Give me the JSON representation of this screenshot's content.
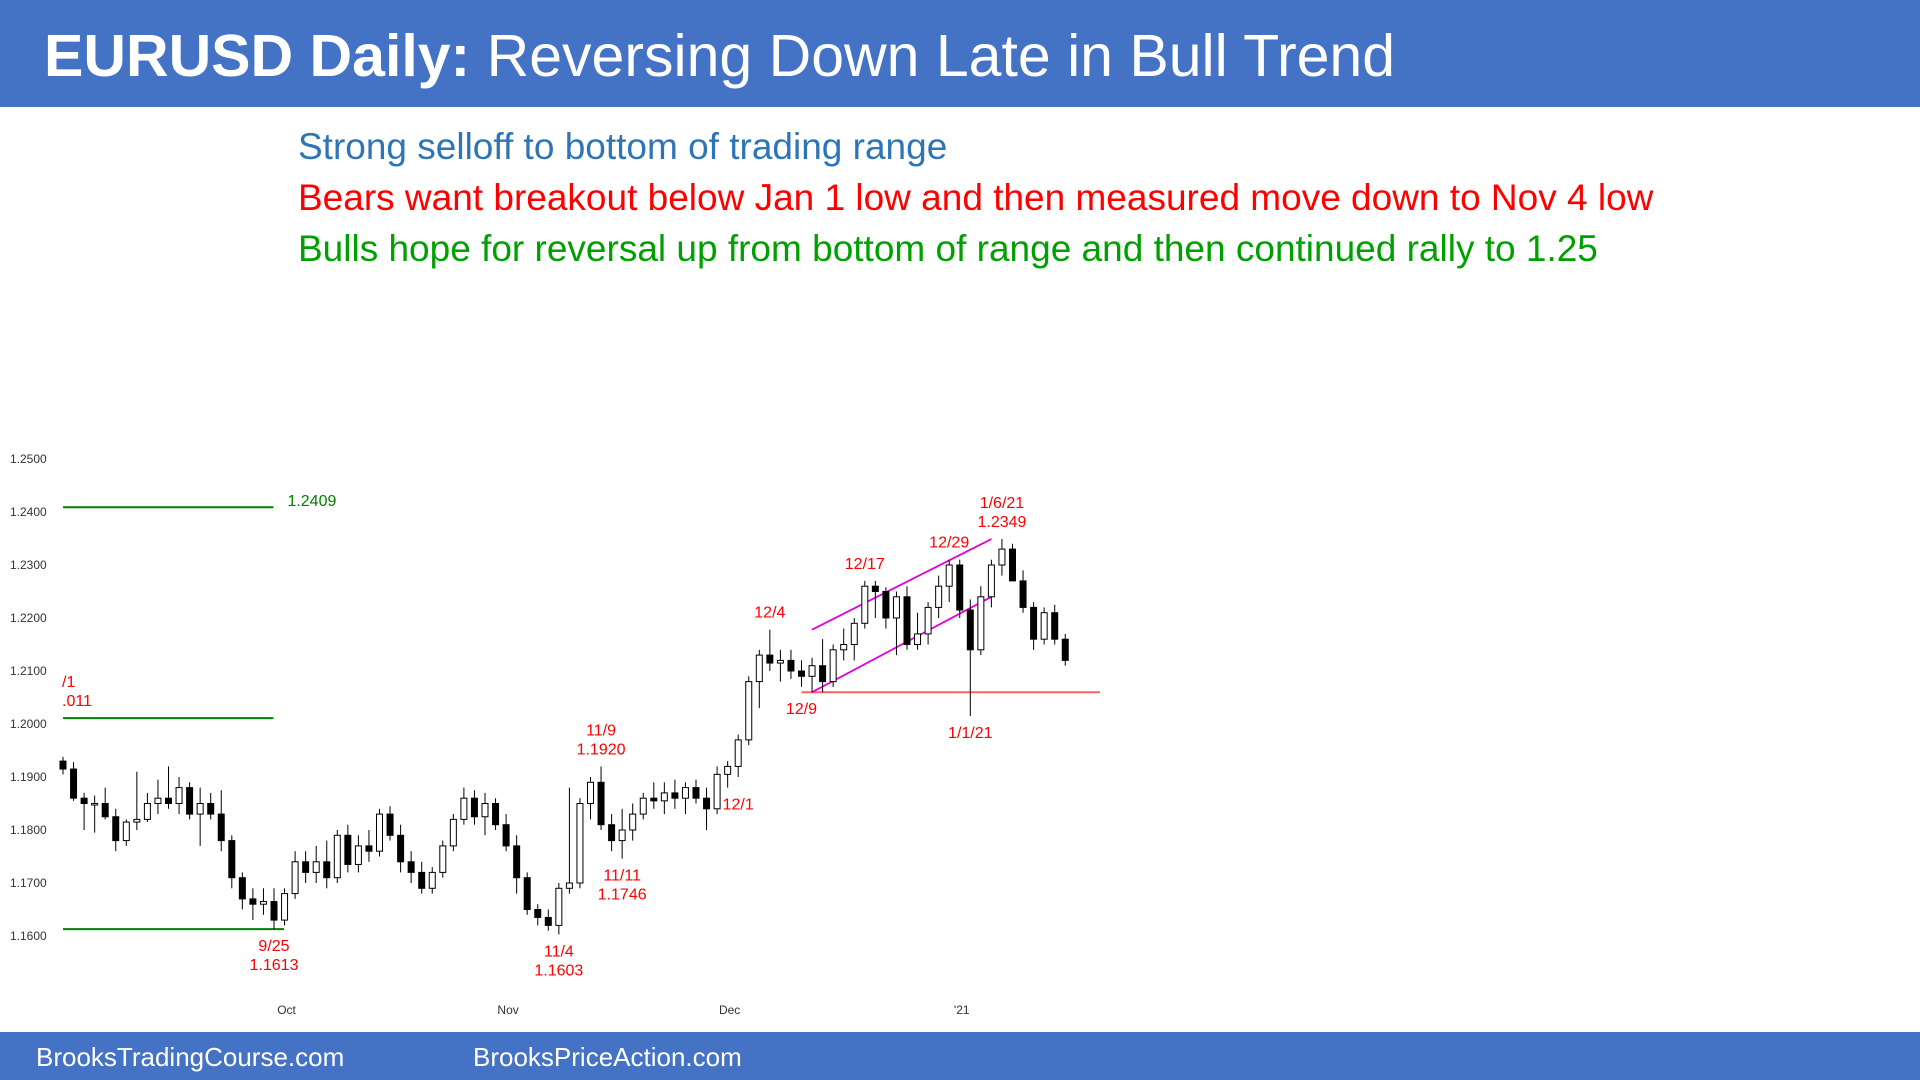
{
  "header": {
    "title_bold": "EURUSD Daily:",
    "title_rest": "Reversing Down Late in Bull Trend",
    "background": "#4472c4"
  },
  "notes": [
    {
      "text": "Strong selloff to bottom of trading range",
      "color": "#2e75b6"
    },
    {
      "text": "Bears want breakout below Jan 1 low and then measured move down to Nov 4 low",
      "color": "#ff0000"
    },
    {
      "text": "Bulls hope for reversal up from bottom of range and then continued rally to 1.25",
      "color": "#00a000"
    }
  ],
  "footer": {
    "left": "BrooksTradingCourse.com",
    "right": "BrooksPriceAction.com"
  },
  "chart_data": {
    "type": "candlestick",
    "title": "",
    "ylim": [
      1.155,
      1.254
    ],
    "y_ticks": [
      "1.2500",
      "1.2400",
      "1.2300",
      "1.2200",
      "1.2100",
      "1.2000",
      "1.1900",
      "1.1800",
      "1.1700",
      "1.1600"
    ],
    "x_tick_labels": [
      {
        "label": "Oct",
        "bar": 21
      },
      {
        "label": "Nov",
        "bar": 42
      },
      {
        "label": "Dec",
        "bar": 63
      },
      {
        "label": "'21",
        "bar": 85
      }
    ],
    "candles": [
      [
        1.193,
        1.1938,
        1.1905,
        1.1915
      ],
      [
        1.1915,
        1.1928,
        1.1855,
        1.186
      ],
      [
        1.186,
        1.187,
        1.18,
        1.185
      ],
      [
        1.185,
        1.1865,
        1.1795,
        1.185
      ],
      [
        1.185,
        1.188,
        1.182,
        1.1825
      ],
      [
        1.1825,
        1.184,
        1.176,
        1.178
      ],
      [
        1.178,
        1.182,
        1.177,
        1.1815
      ],
      [
        1.1815,
        1.191,
        1.18,
        1.182
      ],
      [
        1.182,
        1.187,
        1.1815,
        1.185
      ],
      [
        1.185,
        1.1895,
        1.183,
        1.186
      ],
      [
        1.186,
        1.192,
        1.184,
        1.185
      ],
      [
        1.185,
        1.19,
        1.183,
        1.188
      ],
      [
        1.188,
        1.189,
        1.182,
        1.183
      ],
      [
        1.183,
        1.188,
        1.177,
        1.185
      ],
      [
        1.185,
        1.187,
        1.182,
        1.183
      ],
      [
        1.183,
        1.1875,
        1.176,
        1.178
      ],
      [
        1.178,
        1.179,
        1.169,
        1.171
      ],
      [
        1.171,
        1.172,
        1.165,
        1.167
      ],
      [
        1.167,
        1.169,
        1.163,
        1.166
      ],
      [
        1.166,
        1.169,
        1.164,
        1.1665
      ],
      [
        1.1665,
        1.169,
        1.1613,
        1.163
      ],
      [
        1.163,
        1.169,
        1.162,
        1.168
      ],
      [
        1.168,
        1.176,
        1.167,
        1.174
      ],
      [
        1.174,
        1.176,
        1.17,
        1.172
      ],
      [
        1.172,
        1.177,
        1.17,
        1.174
      ],
      [
        1.174,
        1.178,
        1.169,
        1.171
      ],
      [
        1.171,
        1.18,
        1.17,
        1.179
      ],
      [
        1.179,
        1.181,
        1.172,
        1.1735
      ],
      [
        1.1735,
        1.179,
        1.172,
        1.177
      ],
      [
        1.177,
        1.18,
        1.174,
        1.176
      ],
      [
        1.176,
        1.184,
        1.175,
        1.183
      ],
      [
        1.183,
        1.1845,
        1.178,
        1.179
      ],
      [
        1.179,
        1.181,
        1.172,
        1.174
      ],
      [
        1.174,
        1.176,
        1.17,
        1.172
      ],
      [
        1.172,
        1.174,
        1.168,
        1.169
      ],
      [
        1.169,
        1.173,
        1.168,
        1.172
      ],
      [
        1.172,
        1.178,
        1.171,
        1.177
      ],
      [
        1.177,
        1.183,
        1.176,
        1.182
      ],
      [
        1.182,
        1.188,
        1.181,
        1.186
      ],
      [
        1.186,
        1.1875,
        1.181,
        1.1825
      ],
      [
        1.1825,
        1.187,
        1.179,
        1.185
      ],
      [
        1.185,
        1.186,
        1.18,
        1.181
      ],
      [
        1.181,
        1.183,
        1.176,
        1.177
      ],
      [
        1.177,
        1.179,
        1.168,
        1.171
      ],
      [
        1.171,
        1.172,
        1.164,
        1.165
      ],
      [
        1.165,
        1.166,
        1.162,
        1.1635
      ],
      [
        1.1635,
        1.165,
        1.161,
        1.162
      ],
      [
        1.162,
        1.17,
        1.1603,
        1.169
      ],
      [
        1.169,
        1.188,
        1.168,
        1.17
      ],
      [
        1.17,
        1.186,
        1.169,
        1.185
      ],
      [
        1.185,
        1.19,
        1.182,
        1.189
      ],
      [
        1.189,
        1.192,
        1.18,
        1.181
      ],
      [
        1.181,
        1.183,
        1.176,
        1.178
      ],
      [
        1.178,
        1.184,
        1.1746,
        1.18
      ],
      [
        1.18,
        1.185,
        1.178,
        1.183
      ],
      [
        1.183,
        1.187,
        1.182,
        1.186
      ],
      [
        1.186,
        1.189,
        1.184,
        1.1855
      ],
      [
        1.1855,
        1.189,
        1.183,
        1.187
      ],
      [
        1.187,
        1.1895,
        1.184,
        1.186
      ],
      [
        1.186,
        1.189,
        1.183,
        1.188
      ],
      [
        1.188,
        1.1895,
        1.185,
        1.186
      ],
      [
        1.186,
        1.188,
        1.18,
        1.184
      ],
      [
        1.184,
        1.192,
        1.183,
        1.1905
      ],
      [
        1.1905,
        1.193,
        1.188,
        1.192
      ],
      [
        1.192,
        1.198,
        1.19,
        1.197
      ],
      [
        1.197,
        1.209,
        1.196,
        1.208
      ],
      [
        1.208,
        1.214,
        1.203,
        1.213
      ],
      [
        1.213,
        1.2178,
        1.21,
        1.2115
      ],
      [
        1.2115,
        1.214,
        1.208,
        1.212
      ],
      [
        1.212,
        1.214,
        1.2085,
        1.21
      ],
      [
        1.21,
        1.212,
        1.207,
        1.209
      ],
      [
        1.209,
        1.2125,
        1.206,
        1.211
      ],
      [
        1.211,
        1.216,
        1.206,
        1.208
      ],
      [
        1.208,
        1.215,
        1.207,
        1.214
      ],
      [
        1.214,
        1.218,
        1.212,
        1.215
      ],
      [
        1.215,
        1.22,
        1.212,
        1.219
      ],
      [
        1.219,
        1.227,
        1.218,
        1.226
      ],
      [
        1.226,
        1.227,
        1.22,
        1.225
      ],
      [
        1.225,
        1.2258,
        1.218,
        1.22
      ],
      [
        1.22,
        1.225,
        1.213,
        1.224
      ],
      [
        1.224,
        1.226,
        1.214,
        1.215
      ],
      [
        1.215,
        1.221,
        1.214,
        1.217
      ],
      [
        1.217,
        1.223,
        1.215,
        1.222
      ],
      [
        1.222,
        1.228,
        1.22,
        1.226
      ],
      [
        1.226,
        1.231,
        1.223,
        1.23
      ],
      [
        1.23,
        1.231,
        1.22,
        1.2215
      ],
      [
        1.2215,
        1.2235,
        1.2015,
        1.214
      ],
      [
        1.214,
        1.226,
        1.213,
        1.224
      ],
      [
        1.224,
        1.231,
        1.222,
        1.23
      ],
      [
        1.23,
        1.2349,
        1.228,
        1.233
      ],
      [
        1.233,
        1.234,
        1.227,
        1.227
      ],
      [
        1.227,
        1.229,
        1.221,
        1.222
      ],
      [
        1.222,
        1.223,
        1.214,
        1.216
      ],
      [
        1.216,
        1.222,
        1.215,
        1.221
      ],
      [
        1.221,
        1.2225,
        1.215,
        1.216
      ],
      [
        1.216,
        1.217,
        1.211,
        1.212
      ]
    ],
    "levels": [
      {
        "value": 1.2409,
        "bar_start": 0,
        "bar_end": 19,
        "color": "#008000",
        "label": "1.2409"
      },
      {
        "value": 1.2011,
        "bar_start": 0,
        "bar_end": 19,
        "color": "#008000"
      },
      {
        "value": 1.1613,
        "bar_start": 0,
        "bar_end": 20,
        "color": "#008000"
      },
      {
        "value": 1.206,
        "bar_start": 70,
        "bar_end": 98,
        "color": "#ff6060"
      }
    ],
    "channel_lines": [
      {
        "from": [
          71,
          1.2178
        ],
        "to": [
          88,
          1.2349
        ],
        "color": "#e000e0"
      },
      {
        "from": [
          71,
          1.206
        ],
        "to": [
          88,
          1.224
        ],
        "color": "#e000e0"
      }
    ],
    "annotations": [
      {
        "lines": [
          "/1",
          ".011"
        ],
        "bar": 0,
        "value": 1.2011,
        "color": "#ff0000",
        "pos": "above"
      },
      {
        "lines": [
          "9/25",
          "1.1613"
        ],
        "bar": 20,
        "value": 1.1613,
        "color": "#ff0000",
        "pos": "below"
      },
      {
        "lines": [
          "11/4",
          "1.1603"
        ],
        "bar": 47,
        "value": 1.1603,
        "color": "#ff0000",
        "pos": "below"
      },
      {
        "lines": [
          "11/9",
          "1.1920"
        ],
        "bar": 51,
        "value": 1.192,
        "color": "#ff0000",
        "pos": "above"
      },
      {
        "lines": [
          "11/11",
          "1.1746"
        ],
        "bar": 53,
        "value": 1.1746,
        "color": "#ff0000",
        "pos": "below"
      },
      {
        "lines": [
          "12/1"
        ],
        "bar": 64,
        "value": 1.188,
        "color": "#ff0000",
        "pos": "below"
      },
      {
        "lines": [
          "12/4"
        ],
        "bar": 67,
        "value": 1.2178,
        "color": "#ff0000",
        "pos": "above"
      },
      {
        "lines": [
          "12/9"
        ],
        "bar": 70,
        "value": 1.206,
        "color": "#ff0000",
        "pos": "below"
      },
      {
        "lines": [
          "12/17"
        ],
        "bar": 76,
        "value": 1.227,
        "color": "#ff0000",
        "pos": "above"
      },
      {
        "lines": [
          "12/29"
        ],
        "bar": 84,
        "value": 1.231,
        "color": "#ff0000",
        "pos": "above"
      },
      {
        "lines": [
          "1/1/21"
        ],
        "bar": 86,
        "value": 1.2015,
        "color": "#ff0000",
        "pos": "below"
      },
      {
        "lines": [
          "1/6/21",
          "1.2349"
        ],
        "bar": 89,
        "value": 1.2349,
        "color": "#ff0000",
        "pos": "above"
      }
    ]
  }
}
